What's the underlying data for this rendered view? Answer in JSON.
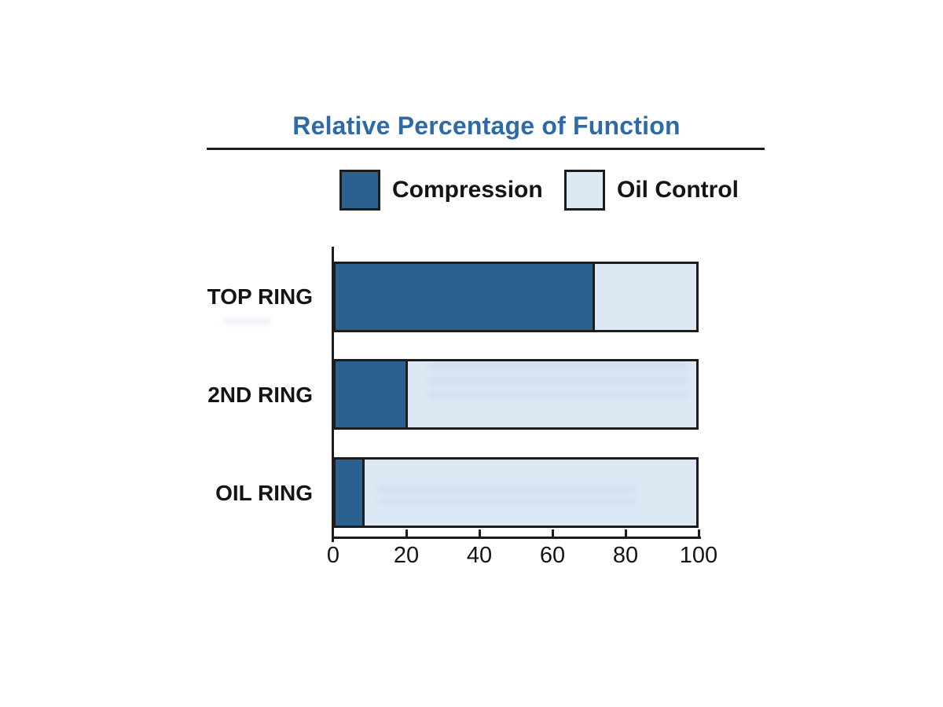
{
  "chart": {
    "title": "Relative Percentage of Function",
    "legend": [
      "Compression",
      "Oil Control"
    ],
    "colors": {
      "compression": "#2b618f",
      "oil_control": "#dde8f5",
      "title_text": "#2e6ba6",
      "ink": "#1c1c1c"
    }
  },
  "chart_data": {
    "type": "bar",
    "orientation": "horizontal",
    "stacked": true,
    "title": "Relative Percentage of Function",
    "categories": [
      "TOP RING",
      "2ND RING",
      "OIL RING"
    ],
    "series": [
      {
        "name": "Compression",
        "color": "#2b618f",
        "values": [
          72,
          20,
          8
        ]
      },
      {
        "name": "Oil Control",
        "color": "#dde8f5",
        "values": [
          28,
          80,
          92
        ]
      }
    ],
    "xlabel": "",
    "ylabel": "",
    "xlim": [
      0,
      100
    ],
    "xticks": [
      0,
      20,
      40,
      60,
      80,
      100
    ],
    "legend_position": "top",
    "grid": false
  }
}
